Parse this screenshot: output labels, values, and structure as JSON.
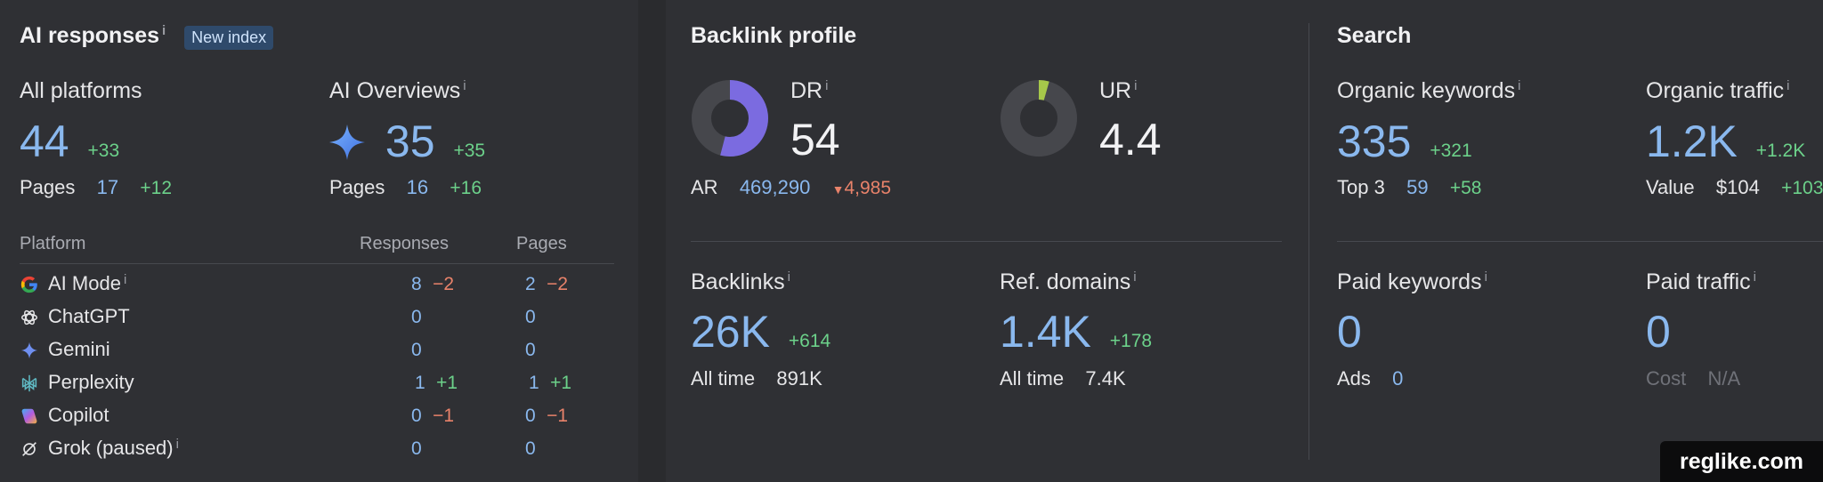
{
  "ai": {
    "title": "AI responses",
    "badge": "New index",
    "all_platforms": {
      "label": "All platforms",
      "value": "44",
      "delta": "+33"
    },
    "ai_overviews": {
      "label": "AI Overviews",
      "value": "35",
      "delta": "+35"
    },
    "pages_all": {
      "label": "Pages",
      "value": "17",
      "delta": "+12"
    },
    "pages_overviews": {
      "label": "Pages",
      "value": "16",
      "delta": "+16"
    },
    "table": {
      "col_platform": "Platform",
      "col_responses": "Responses",
      "col_pages": "Pages",
      "rows": [
        {
          "name": "AI Mode",
          "icon": "google-icon",
          "responses": "8",
          "responses_delta": "−2",
          "pages": "2",
          "pages_delta": "−2"
        },
        {
          "name": "ChatGPT",
          "icon": "chatgpt-icon",
          "responses": "0",
          "responses_delta": "",
          "pages": "0",
          "pages_delta": ""
        },
        {
          "name": "Gemini",
          "icon": "gemini-icon",
          "responses": "0",
          "responses_delta": "",
          "pages": "0",
          "pages_delta": ""
        },
        {
          "name": "Perplexity",
          "icon": "perplexity-icon",
          "responses": "1",
          "responses_delta": "+1",
          "pages": "1",
          "pages_delta": "+1"
        },
        {
          "name": "Copilot",
          "icon": "copilot-icon",
          "responses": "0",
          "responses_delta": "−1",
          "pages": "0",
          "pages_delta": "−1"
        },
        {
          "name": "Grok (paused)",
          "icon": "grok-icon",
          "responses": "0",
          "responses_delta": "",
          "pages": "0",
          "pages_delta": ""
        }
      ]
    }
  },
  "backlink": {
    "title": "Backlink profile",
    "dr": {
      "label": "DR",
      "value": "54",
      "fill_fraction": 0.54,
      "color": "#7b6be0"
    },
    "ur": {
      "label": "UR",
      "value": "4.4",
      "fill_fraction": 0.044,
      "color": "#a6c84a"
    },
    "ar": {
      "label": "AR",
      "value": "469,290",
      "delta": "4,985"
    },
    "backlinks": {
      "label": "Backlinks",
      "value": "26K",
      "delta": "+614",
      "alltime_label": "All time",
      "alltime_value": "891K"
    },
    "ref_domains": {
      "label": "Ref. domains",
      "value": "1.4K",
      "delta": "+178",
      "alltime_label": "All time",
      "alltime_value": "7.4K"
    }
  },
  "search": {
    "title": "Search",
    "organic_keywords": {
      "label": "Organic keywords",
      "value": "335",
      "delta": "+321",
      "sub_label": "Top 3",
      "sub_value": "59",
      "sub_delta": "+58"
    },
    "organic_traffic": {
      "label": "Organic traffic",
      "value": "1.2K",
      "delta": "+1.2K",
      "sub_label": "Value",
      "sub_value": "$104",
      "sub_delta": "+103"
    },
    "paid_keywords": {
      "label": "Paid keywords",
      "value": "0",
      "sub_label": "Ads",
      "sub_value": "0"
    },
    "paid_traffic": {
      "label": "Paid traffic",
      "value": "0",
      "sub_label": "Cost",
      "sub_value": "N/A"
    }
  },
  "watermark": "reglike.com"
}
